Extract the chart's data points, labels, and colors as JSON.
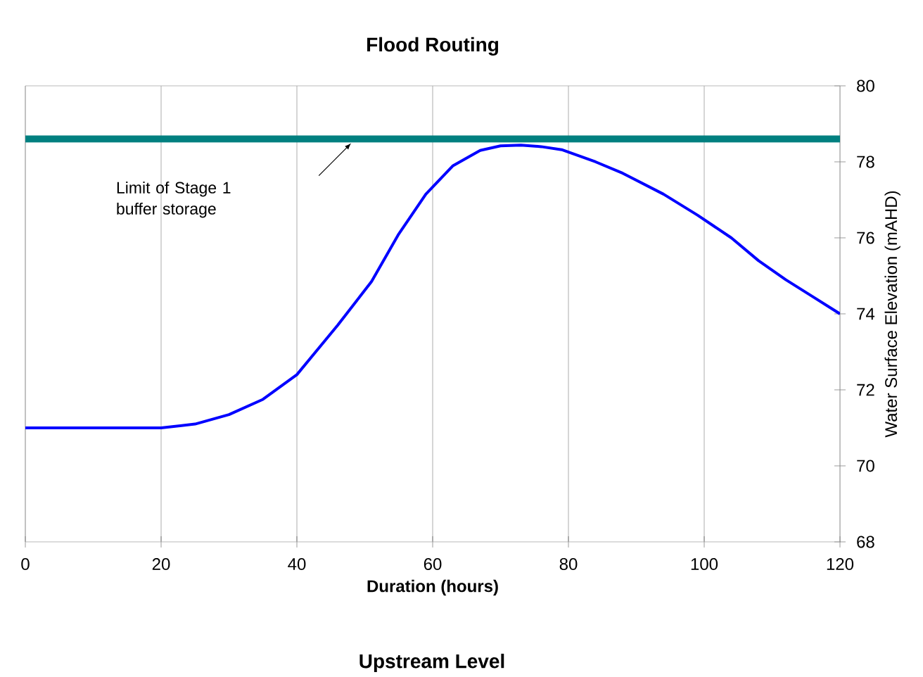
{
  "chart_data": {
    "type": "line",
    "title": "Flood Routing",
    "xlabel": "Duration (hours)",
    "ylabel": "Water Surface Elevation (mAHD)",
    "x": [
      0,
      10,
      20,
      25,
      30,
      35,
      40,
      46,
      51,
      55,
      59,
      63,
      67,
      70,
      73,
      76,
      79,
      84,
      88,
      94,
      99,
      104,
      108,
      112,
      116,
      120
    ],
    "values": [
      71.0,
      71.0,
      71.0,
      71.1,
      71.35,
      71.75,
      72.4,
      73.7,
      74.85,
      76.1,
      77.15,
      77.9,
      78.3,
      78.42,
      78.44,
      78.4,
      78.32,
      78.0,
      77.7,
      77.15,
      76.6,
      76.0,
      75.4,
      74.9,
      74.45,
      74.0
    ],
    "color": "#0000ff",
    "marker": "none",
    "line_style": "solid",
    "xlim": [
      0,
      120
    ],
    "xticks": [
      0,
      20,
      40,
      60,
      80,
      100,
      120
    ],
    "ylim": [
      68,
      80
    ],
    "yticks": [
      68,
      70,
      72,
      74,
      76,
      78,
      80
    ],
    "grid": "x",
    "ref_lines": [
      {
        "axis": "y",
        "value": 78.6,
        "color": "#008080"
      }
    ],
    "annotations": [
      "Limit of Stage 1 buffer storage",
      "Upstream Level"
    ]
  }
}
